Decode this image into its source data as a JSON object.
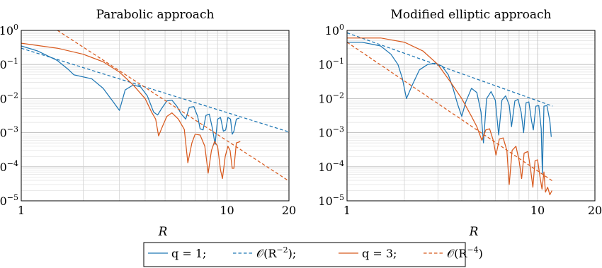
{
  "chart_data": [
    {
      "type": "line",
      "title": "Parabolic approach",
      "xlabel": "R",
      "ylabel": "",
      "xscale": "log",
      "yscale": "log",
      "xlim": [
        1,
        20
      ],
      "ylim": [
        1e-05,
        1
      ],
      "x_tick_labels": [
        "1",
        "10",
        "20"
      ],
      "y_tick_labels": [
        {
          "base": "10",
          "exp": "0"
        },
        {
          "base": "10",
          "exp": "−1"
        },
        {
          "base": "10",
          "exp": "−2"
        },
        {
          "base": "10",
          "exp": "−3"
        },
        {
          "base": "10",
          "exp": "−4"
        },
        {
          "base": "10",
          "exp": "−5"
        }
      ],
      "grid": true,
      "series": [
        {
          "key": "q1",
          "color": "#1f77b4",
          "dash": "solid",
          "points": [
            [
              1,
              0.35
            ],
            [
              1.2,
              0.25
            ],
            [
              1.5,
              0.13
            ],
            [
              1.7,
              0.07
            ],
            [
              1.8,
              0.05
            ],
            [
              2.2,
              0.038
            ],
            [
              2.5,
              0.02
            ],
            [
              2.8,
              0.008
            ],
            [
              3.0,
              0.0045
            ],
            [
              3.2,
              0.018
            ],
            [
              3.5,
              0.025
            ],
            [
              3.8,
              0.022
            ],
            [
              4.1,
              0.012
            ],
            [
              4.4,
              0.004
            ],
            [
              4.6,
              0.0033
            ],
            [
              4.8,
              0.005
            ],
            [
              5.1,
              0.0085
            ],
            [
              5.4,
              0.009
            ],
            [
              5.7,
              0.006
            ],
            [
              6.0,
              0.0035
            ],
            [
              6.3,
              0.0025
            ],
            [
              6.55,
              0.0055
            ],
            [
              6.9,
              0.0058
            ],
            [
              7.2,
              0.003
            ],
            [
              7.4,
              0.0013
            ],
            [
              7.65,
              0.0012
            ],
            [
              7.9,
              0.0032
            ],
            [
              8.2,
              0.0035
            ],
            [
              8.5,
              0.0013
            ],
            [
              8.75,
              0.00045
            ],
            [
              9.0,
              0.0025
            ],
            [
              9.3,
              0.0028
            ],
            [
              9.6,
              0.0011
            ],
            [
              9.85,
              0.0012
            ],
            [
              10.1,
              0.0028
            ],
            [
              10.4,
              0.0025
            ],
            [
              10.6,
              0.0009
            ],
            [
              10.8,
              0.0011
            ],
            [
              11.1,
              0.0025
            ],
            [
              11.5,
              0.0027
            ]
          ]
        },
        {
          "key": "q1ref",
          "color": "#1f77b4",
          "dash": "dashed",
          "points": [
            [
              1,
              0.3
            ],
            [
              20,
              0.00105
            ]
          ]
        },
        {
          "key": "q3",
          "color": "#d85a1e",
          "dash": "solid",
          "points": [
            [
              1,
              0.42
            ],
            [
              1.5,
              0.3
            ],
            [
              2.0,
              0.2
            ],
            [
              2.5,
              0.12
            ],
            [
              3.0,
              0.06
            ],
            [
              3.5,
              0.025
            ],
            [
              4.0,
              0.01
            ],
            [
              4.3,
              0.004
            ],
            [
              4.5,
              0.0025
            ],
            [
              4.65,
              0.0008
            ],
            [
              4.85,
              0.0015
            ],
            [
              5.1,
              0.003
            ],
            [
              5.4,
              0.0038
            ],
            [
              5.8,
              0.0025
            ],
            [
              6.2,
              0.00125
            ],
            [
              6.45,
              0.00013
            ],
            [
              6.75,
              0.0005
            ],
            [
              7.0,
              0.0009
            ],
            [
              7.4,
              0.00085
            ],
            [
              7.8,
              0.0004
            ],
            [
              8.1,
              6.5e-05
            ],
            [
              8.4,
              0.0003
            ],
            [
              8.7,
              0.00055
            ],
            [
              9.0,
              0.0004
            ],
            [
              9.3,
              8e-05
            ],
            [
              9.5,
              4.5e-05
            ],
            [
              9.8,
              0.0002
            ],
            [
              10.1,
              0.0004
            ],
            [
              10.35,
              0.0003
            ],
            [
              10.6,
              9e-05
            ],
            [
              10.8,
              9e-05
            ],
            [
              11.1,
              0.0005
            ],
            [
              11.6,
              0.00055
            ]
          ]
        },
        {
          "key": "q3ref",
          "color": "#d85a1e",
          "dash": "dashed",
          "points": [
            [
              1.5,
              1.0
            ],
            [
              20,
              3.8e-05
            ]
          ]
        }
      ]
    },
    {
      "type": "line",
      "title": "Modified elliptic approach",
      "xlabel": "R",
      "ylabel": "",
      "xscale": "log",
      "yscale": "log",
      "xlim": [
        1,
        20
      ],
      "ylim": [
        1e-05,
        1
      ],
      "x_tick_labels": [
        "1",
        "10",
        "20"
      ],
      "y_tick_labels": [
        {
          "base": "10",
          "exp": "0"
        },
        {
          "base": "10",
          "exp": "−1"
        },
        {
          "base": "10",
          "exp": "−2"
        },
        {
          "base": "10",
          "exp": "−3"
        },
        {
          "base": "10",
          "exp": "−4"
        },
        {
          "base": "10",
          "exp": "−5"
        }
      ],
      "grid": true,
      "series": [
        {
          "key": "q1",
          "color": "#1f77b4",
          "dash": "solid",
          "points": [
            [
              1,
              0.45
            ],
            [
              1.2,
              0.45
            ],
            [
              1.5,
              0.35
            ],
            [
              1.7,
              0.2
            ],
            [
              1.85,
              0.1
            ],
            [
              1.95,
              0.04
            ],
            [
              2.05,
              0.01
            ],
            [
              2.2,
              0.025
            ],
            [
              2.4,
              0.07
            ],
            [
              2.65,
              0.1
            ],
            [
              2.9,
              0.11
            ],
            [
              3.15,
              0.09
            ],
            [
              3.4,
              0.05
            ],
            [
              3.6,
              0.02
            ],
            [
              3.8,
              0.007
            ],
            [
              4.0,
              0.003
            ],
            [
              4.2,
              0.008
            ],
            [
              4.5,
              0.02
            ],
            [
              4.8,
              0.015
            ],
            [
              5.05,
              0.004
            ],
            [
              5.2,
              0.0005
            ],
            [
              5.4,
              0.01
            ],
            [
              5.7,
              0.016
            ],
            [
              6.0,
              0.009
            ],
            [
              6.25,
              0.00085
            ],
            [
              6.5,
              0.009
            ],
            [
              6.8,
              0.012
            ],
            [
              7.1,
              0.0065
            ],
            [
              7.3,
              0.0015
            ],
            [
              7.6,
              0.0085
            ],
            [
              7.9,
              0.0095
            ],
            [
              8.2,
              0.004
            ],
            [
              8.45,
              0.001
            ],
            [
              8.7,
              0.0075
            ],
            [
              9.0,
              0.008
            ],
            [
              9.3,
              0.0022
            ],
            [
              9.5,
              0.0012
            ],
            [
              9.8,
              0.006
            ],
            [
              10.15,
              0.0062
            ],
            [
              10.45,
              0.0013
            ],
            [
              10.6,
              6e-05
            ],
            [
              10.8,
              0.006
            ],
            [
              11.2,
              0.0062
            ],
            [
              11.6,
              0.0022
            ],
            [
              11.8,
              0.00075
            ]
          ]
        },
        {
          "key": "q1ref",
          "color": "#1f77b4",
          "dash": "dashed",
          "points": [
            [
              1,
              0.85
            ],
            [
              12,
              0.006
            ]
          ]
        },
        {
          "key": "q3",
          "color": "#d85a1e",
          "dash": "solid",
          "points": [
            [
              1,
              0.6
            ],
            [
              1.5,
              0.6
            ],
            [
              2.0,
              0.45
            ],
            [
              2.5,
              0.25
            ],
            [
              3.0,
              0.1
            ],
            [
              3.5,
              0.03
            ],
            [
              4.0,
              0.01
            ],
            [
              4.5,
              0.003
            ],
            [
              4.8,
              0.0015
            ],
            [
              5.1,
              0.0006
            ],
            [
              5.35,
              0.0012
            ],
            [
              5.6,
              0.0013
            ],
            [
              5.85,
              0.0006
            ],
            [
              6.05,
              0.00022
            ],
            [
              6.3,
              0.00065
            ],
            [
              6.6,
              0.0007
            ],
            [
              6.9,
              0.0003
            ],
            [
              7.1,
              3e-05
            ],
            [
              7.35,
              0.0003
            ],
            [
              7.7,
              0.0004
            ],
            [
              8.0,
              0.00015
            ],
            [
              8.25,
              4.5e-05
            ],
            [
              8.5,
              0.00025
            ],
            [
              8.9,
              0.00028
            ],
            [
              9.2,
              8e-05
            ],
            [
              9.45,
              2.5e-05
            ],
            [
              9.7,
              0.00015
            ],
            [
              10.0,
              0.00016
            ],
            [
              10.3,
              5e-05
            ],
            [
              10.55,
              2.2e-05
            ],
            [
              10.8,
              7e-05
            ],
            [
              11.0,
              1.8e-05
            ],
            [
              11.3,
              2.5e-05
            ],
            [
              11.6,
              1.5e-05
            ],
            [
              11.9,
              2e-05
            ]
          ]
        },
        {
          "key": "q3ref",
          "color": "#d85a1e",
          "dash": "dashed",
          "points": [
            [
              1,
              0.45
            ],
            [
              12,
              3.8e-05
            ]
          ]
        }
      ]
    }
  ],
  "legend": {
    "placement": "bottom-center",
    "entries": [
      {
        "key": "q1",
        "color": "#1f77b4",
        "dash": "solid",
        "label": "q = 1;"
      },
      {
        "key": "q1ref",
        "color": "#1f77b4",
        "dash": "dashed",
        "label": "𝒪(R",
        "sup": "−2",
        "tail": ");"
      },
      {
        "key": "q3",
        "color": "#d85a1e",
        "dash": "solid",
        "label": "q = 3;"
      },
      {
        "key": "q3ref",
        "color": "#d85a1e",
        "dash": "dashed",
        "label": "𝒪(R",
        "sup": "−4",
        "tail": ")"
      }
    ]
  }
}
